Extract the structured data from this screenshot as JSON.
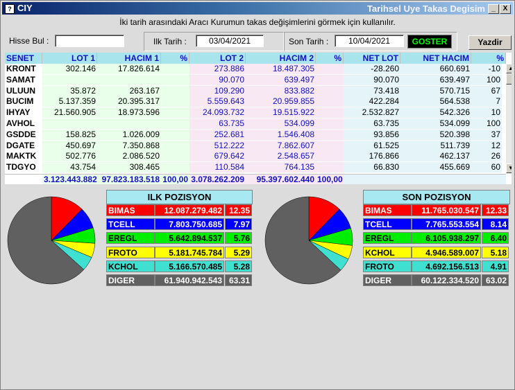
{
  "window": {
    "app_name": "CIY",
    "caption": "Tarihsel Uye Takas Degisim",
    "min_label": "_",
    "close_label": "X"
  },
  "info_text": "İki tarih arasındaki  Aracı Kurumun takas değişimlerini görmek için kullanılır.",
  "toolbar": {
    "hisse_label": "Hisse Bul :",
    "hisse_value": "",
    "ilk_label": "Ilk Tarih :",
    "ilk_value": "03/04/2021",
    "son_label": "Son Tarih :",
    "son_value": "10/04/2021",
    "goster_label": "GOSTER",
    "yazdir_label": "Yazdir"
  },
  "grid": {
    "headers": [
      "SENET",
      "LOT 1",
      "HACIM 1",
      "%",
      "LOT 2",
      "HACIM 2",
      "%",
      "NET LOT",
      "NET HACIM",
      "%"
    ],
    "rows": [
      [
        "KRONT",
        "302.146",
        "17.826.614",
        "",
        "273.886",
        "18.487.305",
        "",
        "-28.260",
        "660.691",
        "-10"
      ],
      [
        "SAMAT",
        "",
        "",
        "",
        "90.070",
        "639.497",
        "",
        "90.070",
        "639.497",
        "100"
      ],
      [
        "ULUUN",
        "35.872",
        "263.167",
        "",
        "109.290",
        "833.882",
        "",
        "73.418",
        "570.715",
        "67"
      ],
      [
        "BUCIM",
        "5.137.359",
        "20.395.317",
        "",
        "5.559.643",
        "20.959.855",
        "",
        "422.284",
        "564.538",
        "7"
      ],
      [
        "IHYAY",
        "21.560.905",
        "18.973.596",
        "",
        "24.093.732",
        "19.515.922",
        "",
        "2.532.827",
        "542.326",
        "10"
      ],
      [
        "AVHOL",
        "",
        "",
        "",
        "63.735",
        "534.099",
        "",
        "63.735",
        "534.099",
        "100"
      ],
      [
        "GSDDE",
        "158.825",
        "1.026.009",
        "",
        "252.681",
        "1.546.408",
        "",
        "93.856",
        "520.398",
        "37"
      ],
      [
        "DGATE",
        "450.697",
        "7.350.868",
        "",
        "512.222",
        "7.862.607",
        "",
        "61.525",
        "511.739",
        "12"
      ],
      [
        "MAKTK",
        "502.776",
        "2.086.520",
        "",
        "679.642",
        "2.548.657",
        "",
        "176.866",
        "462.137",
        "26"
      ],
      [
        "TDGYO",
        "43.754",
        "308.465",
        "",
        "110.584",
        "764.135",
        "",
        "66.830",
        "455.669",
        "60"
      ]
    ],
    "totals": [
      "",
      "3.123.443.882",
      "97.823.183.518",
      "100,00",
      "3.078.262.209",
      "95.397.602.440",
      "100,00",
      "",
      "",
      ""
    ]
  },
  "ilk_pozisyon": {
    "title": "ILK POZISYON",
    "rows": [
      {
        "name": "BIMAS",
        "amount": "12.087.279.482",
        "pct": "12.35",
        "value": 12.35
      },
      {
        "name": "TCELL",
        "amount": "7.803.750.685",
        "pct": "7.97",
        "value": 7.97
      },
      {
        "name": "EREGL",
        "amount": "5.642.894.537",
        "pct": "5.76",
        "value": 5.76
      },
      {
        "name": "FROTO",
        "amount": "5.181.745.784",
        "pct": "5.29",
        "value": 5.29
      },
      {
        "name": "KCHOL",
        "amount": "5.166.570.485",
        "pct": "5.28",
        "value": 5.28
      },
      {
        "name": "DIGER",
        "amount": "61.940.942.543",
        "pct": "63.31",
        "value": 63.31
      }
    ]
  },
  "son_pozisyon": {
    "title": "SON POZISYON",
    "rows": [
      {
        "name": "BIMAS",
        "amount": "11.765.030.547",
        "pct": "12.33",
        "value": 12.33
      },
      {
        "name": "TCELL",
        "amount": "7.765.553.554",
        "pct": "8.14",
        "value": 8.14
      },
      {
        "name": "EREGL",
        "amount": "6.105.938.297",
        "pct": "6.40",
        "value": 6.4
      },
      {
        "name": "KCHOL",
        "amount": "4.946.589.007",
        "pct": "5.18",
        "value": 5.18
      },
      {
        "name": "FROTO",
        "amount": "4.692.156.513",
        "pct": "4.91",
        "value": 4.91
      },
      {
        "name": "DIGER",
        "amount": "60.122.334.520",
        "pct": "63.02",
        "value": 63.02
      }
    ]
  },
  "slice_colors": [
    {
      "bg": "#ff0000",
      "fg": "#ffffff"
    },
    {
      "bg": "#0000ff",
      "fg": "#ffffff"
    },
    {
      "bg": "#00ee00",
      "fg": "#000000"
    },
    {
      "bg": "#ffff00",
      "fg": "#000000"
    },
    {
      "bg": "#40e0d0",
      "fg": "#000000"
    },
    {
      "bg": "#606060",
      "fg": "#ffffff"
    }
  ]
}
